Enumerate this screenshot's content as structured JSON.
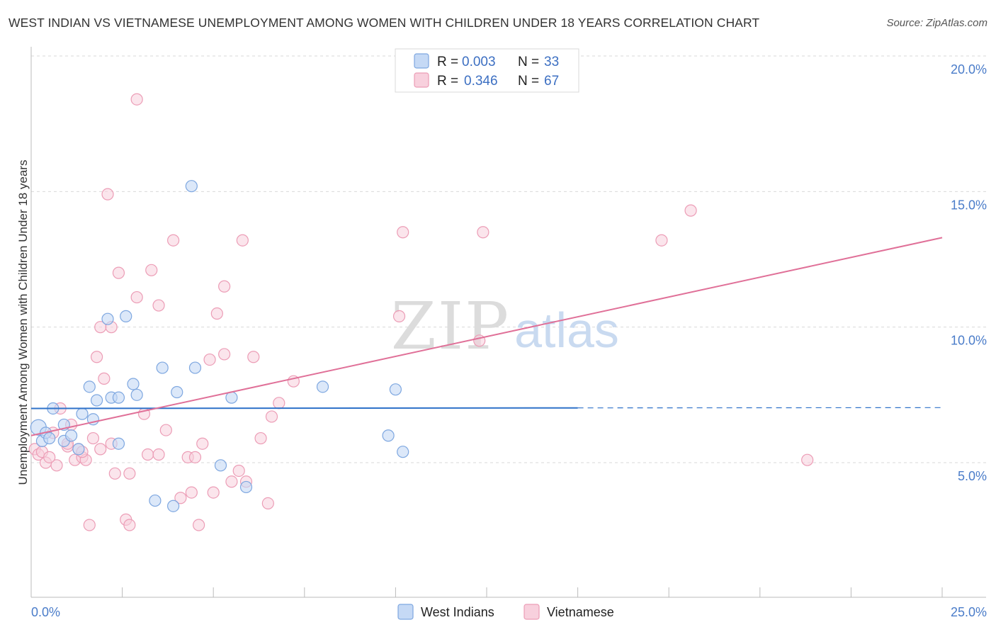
{
  "title": "WEST INDIAN VS VIETNAMESE UNEMPLOYMENT AMONG WOMEN WITH CHILDREN UNDER 18 YEARS CORRELATION CHART",
  "source": "Source: ZipAtlas.com",
  "watermark": {
    "zip": "ZIP",
    "atlas": "atlas"
  },
  "legend": {
    "rows": [
      {
        "r_label": "R =",
        "r_value": "0.003",
        "n_label": "N =",
        "n_value": "33",
        "color": "#a8c6f0"
      },
      {
        "r_label": "R =",
        "r_value": "0.346",
        "n_label": "N =",
        "n_value": "67",
        "color": "#f5b7cb"
      }
    ]
  },
  "bottom_legend": [
    "West Indians",
    "Vietnamese"
  ],
  "colors": {
    "west_fill": "#c5d9f5",
    "west_stroke": "#7ea7e0",
    "west_line": "#2f72c9",
    "viet_fill": "#f8d0dd",
    "viet_stroke": "#ec9db6",
    "viet_line": "#e07098",
    "tick": "#4a7cc9",
    "grid": "#d9d9d9"
  },
  "chart_data": {
    "type": "scatter",
    "title": "WEST INDIAN VS VIETNAMESE UNEMPLOYMENT AMONG WOMEN WITH CHILDREN UNDER 18 YEARS CORRELATION CHART",
    "xlabel": "",
    "ylabel": "Unemployment Among Women with Children Under 18 years",
    "xlim": [
      0,
      25
    ],
    "ylim": [
      0,
      20.5
    ],
    "x_ticks": [
      "0.0%",
      "25.0%"
    ],
    "y_ticks": [
      {
        "value": 5,
        "label": "5.0%"
      },
      {
        "value": 10,
        "label": "10.0%"
      },
      {
        "value": 15,
        "label": "15.0%"
      },
      {
        "value": 20,
        "label": "20.0%"
      }
    ],
    "grid": "horizontal dashed",
    "legend_position": "top-center",
    "series": [
      {
        "name": "West Indians",
        "r": 0.003,
        "n": 33,
        "trend": {
          "x0": 0,
          "y0": 7.0,
          "x1": 15,
          "y1": 7.02,
          "dashed_to": 25,
          "dashed_y": 7.03
        },
        "points": [
          [
            0.2,
            6.3
          ],
          [
            0.3,
            5.8
          ],
          [
            0.4,
            6.1
          ],
          [
            0.5,
            5.9
          ],
          [
            0.6,
            7.0
          ],
          [
            0.9,
            6.4
          ],
          [
            0.9,
            5.8
          ],
          [
            1.1,
            6.0
          ],
          [
            1.3,
            5.5
          ],
          [
            1.4,
            6.8
          ],
          [
            1.6,
            7.8
          ],
          [
            1.7,
            6.6
          ],
          [
            1.8,
            7.3
          ],
          [
            2.1,
            10.3
          ],
          [
            2.2,
            7.4
          ],
          [
            2.4,
            7.4
          ],
          [
            2.4,
            5.7
          ],
          [
            2.6,
            10.4
          ],
          [
            2.8,
            7.9
          ],
          [
            2.9,
            7.5
          ],
          [
            3.4,
            3.6
          ],
          [
            3.6,
            8.5
          ],
          [
            3.9,
            3.4
          ],
          [
            4.0,
            7.6
          ],
          [
            4.4,
            15.2
          ],
          [
            4.5,
            8.5
          ],
          [
            5.2,
            4.9
          ],
          [
            5.5,
            7.4
          ],
          [
            5.9,
            4.1
          ],
          [
            8.0,
            7.8
          ],
          [
            9.8,
            6.0
          ],
          [
            10.0,
            7.7
          ],
          [
            10.2,
            5.4
          ]
        ]
      },
      {
        "name": "Vietnamese",
        "r": 0.346,
        "n": 67,
        "trend": {
          "x0": 0,
          "y0": 6.0,
          "x1": 25,
          "y1": 13.3
        },
        "points": [
          [
            0.1,
            5.5
          ],
          [
            0.2,
            5.3
          ],
          [
            0.4,
            5.0
          ],
          [
            0.6,
            6.1
          ],
          [
            0.7,
            4.9
          ],
          [
            0.8,
            7.0
          ],
          [
            1.0,
            5.6
          ],
          [
            1.1,
            6.4
          ],
          [
            1.2,
            5.1
          ],
          [
            1.3,
            5.5
          ],
          [
            1.4,
            5.2
          ],
          [
            1.5,
            5.1
          ],
          [
            1.6,
            2.7
          ],
          [
            1.7,
            5.9
          ],
          [
            1.8,
            8.9
          ],
          [
            1.9,
            10.0
          ],
          [
            2.0,
            8.1
          ],
          [
            2.1,
            14.9
          ],
          [
            2.2,
            5.7
          ],
          [
            2.2,
            10.0
          ],
          [
            2.3,
            4.6
          ],
          [
            2.4,
            12.0
          ],
          [
            2.6,
            2.9
          ],
          [
            2.7,
            4.6
          ],
          [
            2.7,
            2.7
          ],
          [
            2.9,
            18.4
          ],
          [
            2.9,
            11.1
          ],
          [
            3.1,
            6.8
          ],
          [
            3.2,
            5.3
          ],
          [
            3.3,
            12.1
          ],
          [
            3.5,
            10.8
          ],
          [
            3.5,
            5.3
          ],
          [
            3.7,
            6.2
          ],
          [
            3.9,
            13.2
          ],
          [
            4.1,
            3.7
          ],
          [
            4.3,
            5.2
          ],
          [
            4.4,
            3.9
          ],
          [
            4.5,
            5.2
          ],
          [
            4.6,
            2.7
          ],
          [
            4.7,
            5.7
          ],
          [
            4.9,
            8.8
          ],
          [
            5.0,
            3.9
          ],
          [
            5.1,
            10.5
          ],
          [
            5.3,
            11.5
          ],
          [
            5.3,
            9.0
          ],
          [
            5.5,
            4.3
          ],
          [
            5.7,
            4.7
          ],
          [
            5.8,
            13.2
          ],
          [
            5.9,
            4.3
          ],
          [
            6.1,
            8.9
          ],
          [
            6.3,
            5.9
          ],
          [
            6.5,
            3.5
          ],
          [
            6.6,
            6.7
          ],
          [
            6.8,
            7.2
          ],
          [
            7.2,
            8.0
          ],
          [
            10.1,
            10.4
          ],
          [
            10.2,
            13.5
          ],
          [
            12.3,
            9.5
          ],
          [
            12.4,
            13.5
          ],
          [
            17.3,
            13.2
          ],
          [
            18.1,
            14.3
          ],
          [
            21.3,
            5.1
          ],
          [
            0.3,
            5.4
          ],
          [
            1.0,
            5.7
          ],
          [
            1.9,
            5.5
          ],
          [
            0.5,
            5.2
          ],
          [
            1.4,
            5.4
          ]
        ]
      }
    ]
  }
}
